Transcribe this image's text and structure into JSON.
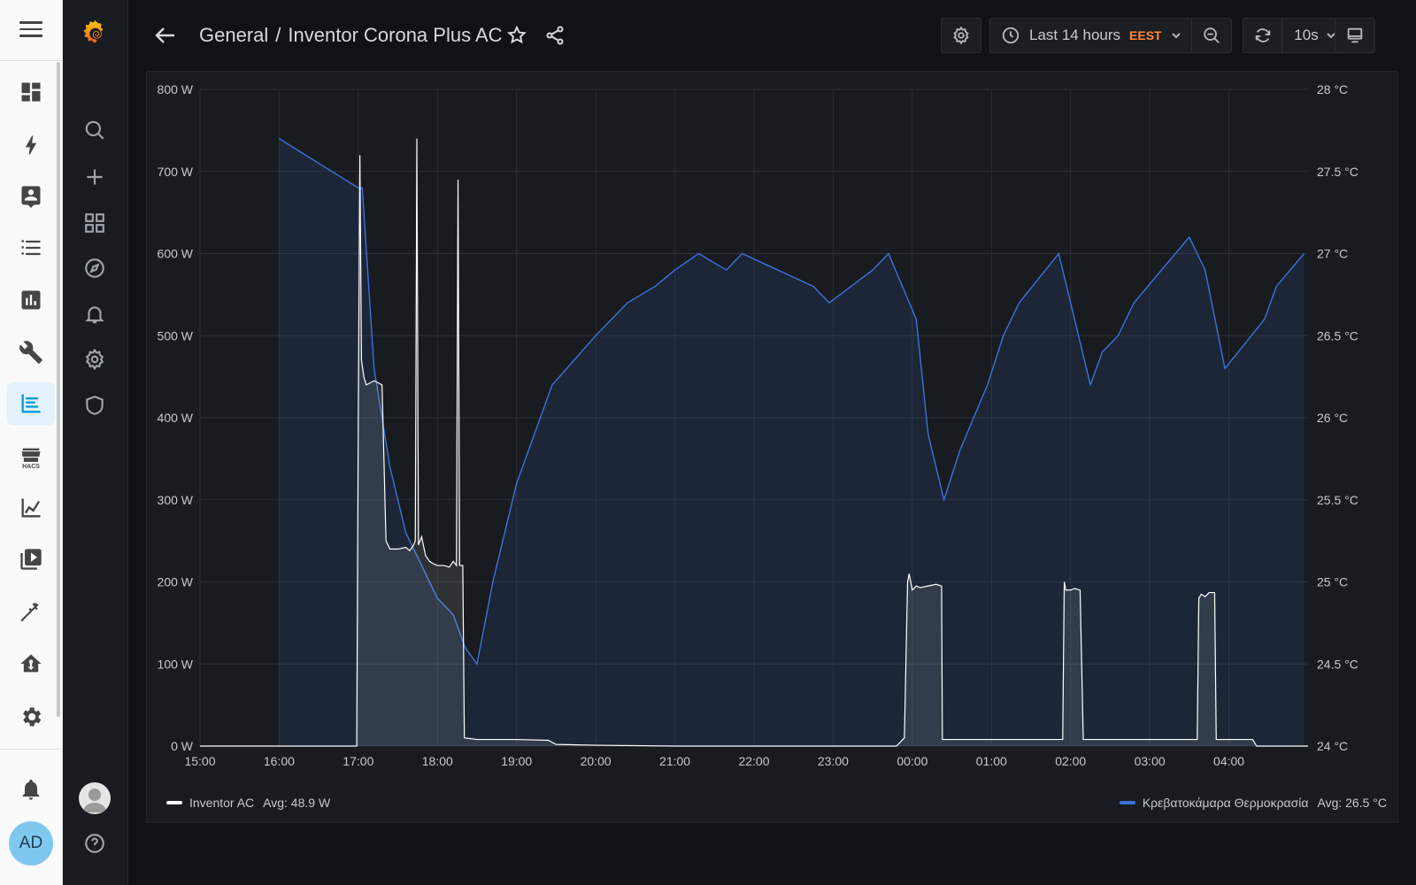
{
  "dashboard": {
    "folder": "General",
    "separator": "/",
    "title": "Inventor Corona Plus AC"
  },
  "toolbar": {
    "time_range": "Last 14 hours",
    "timezone": "EEST",
    "refresh_interval": "10s"
  },
  "user": {
    "initials": "AD"
  },
  "ha_sidebar": {
    "items": [
      "overview-icon",
      "energy-icon",
      "logbook-icon",
      "todo-list-icon",
      "history-icon",
      "tools-icon",
      "grafana-icon",
      "hacs-icon",
      "statistics-icon",
      "media-icon",
      "developer-tools-icon",
      "home-automation-icon",
      "settings-icon",
      "notifications-icon"
    ],
    "active": "grafana-icon",
    "hacs_label": "HACS"
  },
  "chart_data": {
    "type": "line",
    "x_ticks": [
      "15:00",
      "16:00",
      "17:00",
      "18:00",
      "19:00",
      "20:00",
      "21:00",
      "22:00",
      "23:00",
      "00:00",
      "01:00",
      "02:00",
      "03:00",
      "04:00"
    ],
    "y_left": {
      "unit": "W",
      "range": [
        0,
        800
      ],
      "ticks": [
        "0 W",
        "100 W",
        "200 W",
        "300 W",
        "400 W",
        "500 W",
        "600 W",
        "700 W",
        "800 W"
      ]
    },
    "y_right": {
      "unit": "°C",
      "range": [
        24,
        28
      ],
      "ticks": [
        "24 °C",
        "24.5 °C",
        "25 °C",
        "25.5 °C",
        "26 °C",
        "26.5 °C",
        "27 °C",
        "27.5 °C",
        "28 °C"
      ]
    },
    "grid": true,
    "legend_placement": "bottom",
    "series": [
      {
        "name": "Inventor AC",
        "avg": "Avg: 48.9 W",
        "axis": "left",
        "color": "#ffffff",
        "points": [
          [
            0,
            0
          ],
          [
            1.98,
            0
          ],
          [
            2.0,
            400
          ],
          [
            2.02,
            720
          ],
          [
            2.04,
            470
          ],
          [
            2.07,
            450
          ],
          [
            2.1,
            440
          ],
          [
            2.2,
            445
          ],
          [
            2.3,
            440
          ],
          [
            2.35,
            250
          ],
          [
            2.4,
            240
          ],
          [
            2.5,
            240
          ],
          [
            2.6,
            242
          ],
          [
            2.65,
            238
          ],
          [
            2.7,
            245
          ],
          [
            2.72,
            250
          ],
          [
            2.74,
            740
          ],
          [
            2.76,
            245
          ],
          [
            2.8,
            255
          ],
          [
            2.85,
            232
          ],
          [
            2.9,
            225
          ],
          [
            2.95,
            222
          ],
          [
            3.0,
            220
          ],
          [
            3.08,
            220
          ],
          [
            3.15,
            218
          ],
          [
            3.2,
            225
          ],
          [
            3.24,
            220
          ],
          [
            3.26,
            690
          ],
          [
            3.28,
            220
          ],
          [
            3.32,
            220
          ],
          [
            3.34,
            10
          ],
          [
            3.5,
            8
          ],
          [
            4.0,
            8
          ],
          [
            4.4,
            7
          ],
          [
            4.5,
            2
          ],
          [
            5.0,
            1
          ],
          [
            6.0,
            0
          ],
          [
            7.0,
            0
          ],
          [
            8.0,
            0
          ],
          [
            8.8,
            0
          ],
          [
            8.9,
            10
          ],
          [
            8.94,
            200
          ],
          [
            8.96,
            210
          ],
          [
            9.0,
            190
          ],
          [
            9.05,
            195
          ],
          [
            9.1,
            193
          ],
          [
            9.2,
            195
          ],
          [
            9.3,
            197
          ],
          [
            9.37,
            195
          ],
          [
            9.38,
            8
          ],
          [
            9.5,
            8
          ],
          [
            10.0,
            8
          ],
          [
            10.9,
            8
          ],
          [
            10.92,
            200
          ],
          [
            10.94,
            190
          ],
          [
            11.0,
            190
          ],
          [
            11.05,
            192
          ],
          [
            11.12,
            190
          ],
          [
            11.16,
            8
          ],
          [
            11.5,
            8
          ],
          [
            12.0,
            8
          ],
          [
            12.6,
            8
          ],
          [
            12.62,
            180
          ],
          [
            12.65,
            185
          ],
          [
            12.7,
            182
          ],
          [
            12.75,
            187
          ],
          [
            12.82,
            187
          ],
          [
            12.84,
            8
          ],
          [
            13.0,
            8
          ],
          [
            13.2,
            8
          ],
          [
            13.3,
            8
          ],
          [
            13.35,
            0
          ],
          [
            14.0,
            0
          ]
        ]
      },
      {
        "name": "Κρεβατοκάμαρα Θερμοκρασία",
        "avg": "Avg: 26.5 °C",
        "axis": "right",
        "color": "#3d71d9",
        "points": [
          [
            1,
            27.7
          ],
          [
            2.0,
            27.4
          ],
          [
            2.05,
            27.4
          ],
          [
            2.2,
            26.3
          ],
          [
            2.4,
            25.7
          ],
          [
            2.6,
            25.3
          ],
          [
            3.0,
            24.9
          ],
          [
            3.2,
            24.8
          ],
          [
            3.35,
            24.6
          ],
          [
            3.5,
            24.5
          ],
          [
            3.7,
            25.0
          ],
          [
            4.0,
            25.6
          ],
          [
            4.45,
            26.2
          ],
          [
            5.0,
            26.5
          ],
          [
            5.4,
            26.7
          ],
          [
            5.75,
            26.8
          ],
          [
            6.0,
            26.9
          ],
          [
            6.3,
            27.0
          ],
          [
            6.65,
            26.9
          ],
          [
            6.85,
            27.0
          ],
          [
            7.75,
            26.8
          ],
          [
            7.95,
            26.7
          ],
          [
            8.5,
            26.9
          ],
          [
            8.7,
            27.0
          ],
          [
            9.05,
            26.6
          ],
          [
            9.2,
            25.9
          ],
          [
            9.4,
            25.5
          ],
          [
            9.6,
            25.8
          ],
          [
            9.95,
            26.2
          ],
          [
            10.15,
            26.5
          ],
          [
            10.35,
            26.7
          ],
          [
            10.85,
            27.0
          ],
          [
            11.0,
            26.7
          ],
          [
            11.25,
            26.2
          ],
          [
            11.4,
            26.4
          ],
          [
            11.6,
            26.5
          ],
          [
            11.8,
            26.7
          ],
          [
            12.5,
            27.1
          ],
          [
            12.7,
            26.9
          ],
          [
            12.95,
            26.3
          ],
          [
            13.45,
            26.6
          ],
          [
            13.6,
            26.8
          ],
          [
            13.95,
            27.0
          ]
        ]
      }
    ]
  }
}
